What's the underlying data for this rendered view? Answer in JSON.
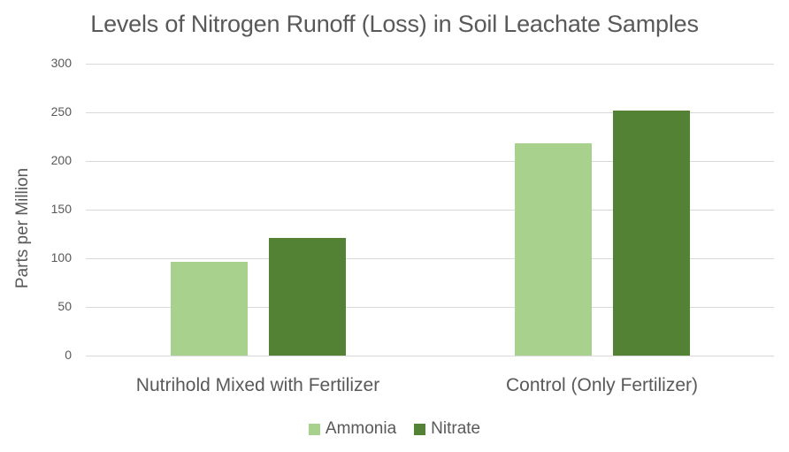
{
  "chart_data": {
    "type": "bar",
    "title": "Levels of Nitrogen Runoff (Loss) in Soil Leachate Samples",
    "xlabel": "",
    "ylabel": "Parts per Million",
    "ylim": [
      0,
      300
    ],
    "yticks": [
      0,
      50,
      100,
      150,
      200,
      250,
      300
    ],
    "grid": true,
    "legend_position": "bottom",
    "categories": [
      "Nutrihold Mixed with Fertilizer",
      "Control (Only Fertilizer)"
    ],
    "series": [
      {
        "name": "Ammonia",
        "color": "#a9d18e",
        "values": [
          96,
          218
        ]
      },
      {
        "name": "Nitrate",
        "color": "#548235",
        "values": [
          121,
          252
        ]
      }
    ]
  },
  "labels": {
    "title": "Levels of Nitrogen Runoff (Loss) in Soil Leachate Samples",
    "ylabel": "Parts per Million",
    "ticks": [
      "0",
      "50",
      "100",
      "150",
      "200",
      "250",
      "300"
    ],
    "categories": [
      "Nutrihold Mixed with Fertilizer",
      "Control (Only Fertilizer)"
    ],
    "legend": [
      "Ammonia",
      "Nitrate"
    ]
  }
}
